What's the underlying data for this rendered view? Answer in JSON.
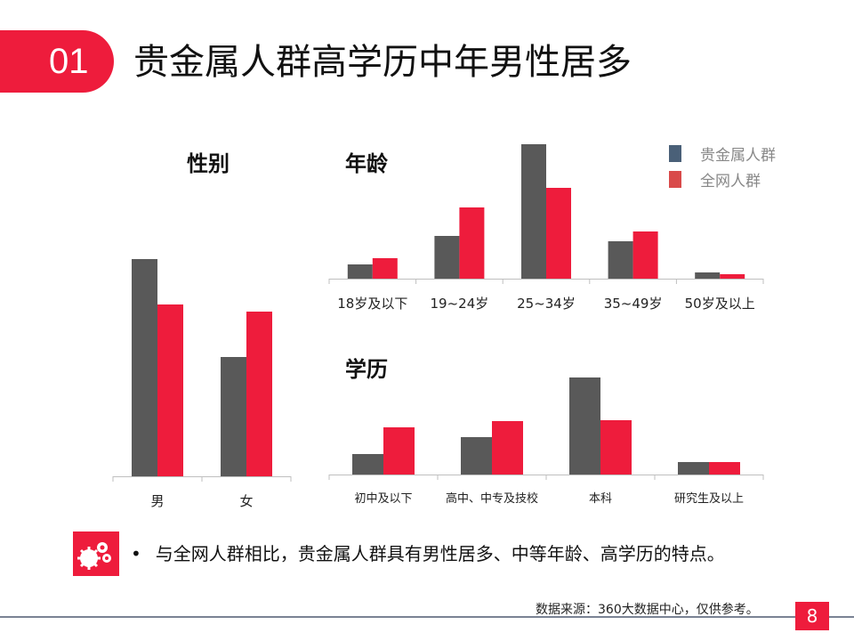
{
  "header": {
    "number": "01",
    "title": "贵金属人群高学历中年男性居多"
  },
  "legend": [
    {
      "label": "贵金属人群",
      "color": "#4a6078"
    },
    {
      "label": "全网人群",
      "color": "#d94a4a"
    }
  ],
  "chart_data": [
    {
      "type": "bar",
      "title": "性别",
      "categories": [
        "男",
        "女"
      ],
      "series": [
        {
          "name": "贵金属人群",
          "values": [
            244,
            134
          ],
          "color": "#595959"
        },
        {
          "name": "全网人群",
          "values": [
            193,
            185
          ],
          "color": "#ee1c3c"
        }
      ],
      "grid": false
    },
    {
      "type": "bar",
      "title": "年龄",
      "categories": [
        "18岁及以下",
        "19~24岁",
        "25~34岁",
        "35~49岁",
        "50岁及以上"
      ],
      "series": [
        {
          "name": "贵金属人群",
          "values": [
            16,
            48,
            151,
            42,
            7
          ],
          "color": "#595959"
        },
        {
          "name": "全网人群",
          "values": [
            23,
            80,
            102,
            53,
            5
          ],
          "color": "#ee1c3c"
        }
      ],
      "grid": false,
      "legend": "top-right"
    },
    {
      "type": "bar",
      "title": "学历",
      "categories": [
        "初中及以下",
        "高中、中专及技校",
        "本科",
        "研究生及以上"
      ],
      "series": [
        {
          "name": "贵金属人群",
          "values": [
            23,
            42,
            109,
            14
          ],
          "color": "#595959"
        },
        {
          "name": "全网人群",
          "values": [
            53,
            60,
            61,
            14
          ],
          "color": "#ee1c3c"
        }
      ],
      "grid": false
    }
  ],
  "note": {
    "bullet": "•",
    "text": "与全网人群相比，贵金属人群具有男性居多、中等年龄、高学历的特点。",
    "icon": "gears-icon"
  },
  "footer": {
    "source": "数据来源：360大数据中心，仅供参考。",
    "page": "8"
  }
}
